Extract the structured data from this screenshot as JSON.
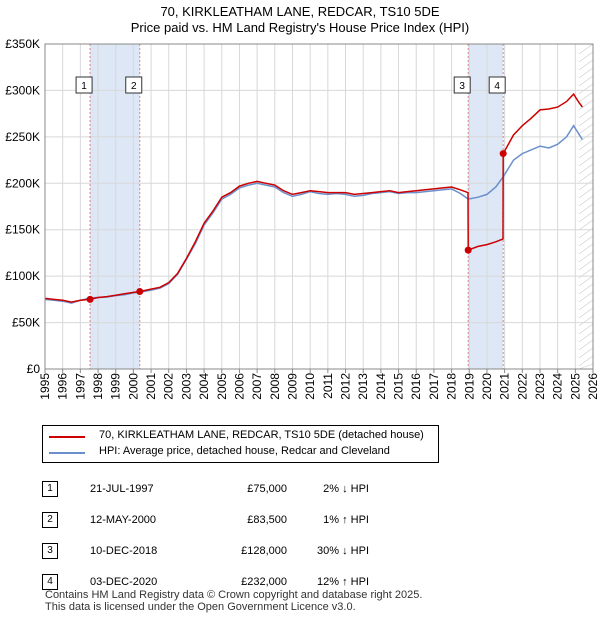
{
  "title": "70, KIRKLEATHAM LANE, REDCAR, TS10 5DE",
  "subtitle": "Price paid vs. HM Land Registry's House Price Index (HPI)",
  "legend": [
    {
      "label": "70, KIRKLEATHAM LANE, REDCAR, TS10 5DE (detached house)",
      "color": "#cc0000"
    },
    {
      "label": "HPI: Average price, detached house, Redcar and Cleveland",
      "color": "#6a8fcc"
    }
  ],
  "transactions": [
    {
      "num": "1",
      "date": "21-JUL-1997",
      "price": "£75,000",
      "hpi": "2% ↓ HPI"
    },
    {
      "num": "2",
      "date": "12-MAY-2000",
      "price": "£83,500",
      "hpi": "1% ↑ HPI"
    },
    {
      "num": "3",
      "date": "10-DEC-2018",
      "price": "£128,000",
      "hpi": "30% ↓ HPI"
    },
    {
      "num": "4",
      "date": "03-DEC-2020",
      "price": "£232,000",
      "hpi": "12% ↑ HPI"
    }
  ],
  "footer": {
    "line1": "Contains HM Land Registry data © Crown copyright and database right 2025.",
    "line2": "This data is licensed under the Open Government Licence v3.0."
  },
  "chart_data": {
    "type": "line",
    "title": "70, KIRKLEATHAM LANE, REDCAR, TS10 5DE",
    "xlim": [
      1995,
      2026
    ],
    "ylim": [
      0,
      350000
    ],
    "y_ticks": [
      0,
      50000,
      100000,
      150000,
      200000,
      250000,
      300000,
      350000
    ],
    "y_tick_labels": [
      "£0",
      "£50K",
      "£100K",
      "£150K",
      "£200K",
      "£250K",
      "£300K",
      "£350K"
    ],
    "x_ticks": [
      1995,
      1996,
      1997,
      1998,
      1999,
      2000,
      2001,
      2002,
      2003,
      2004,
      2005,
      2006,
      2007,
      2008,
      2009,
      2010,
      2011,
      2012,
      2013,
      2014,
      2015,
      2016,
      2017,
      2018,
      2019,
      2020,
      2021,
      2022,
      2023,
      2024,
      2025,
      2026
    ],
    "x_tick_labels": [
      "1995",
      "1996",
      "1997",
      "1998",
      "1999",
      "2000",
      "2001",
      "2002",
      "2003",
      "2004",
      "2005",
      "2006",
      "2007",
      "2008",
      "2009",
      "2010",
      "2011",
      "2012",
      "2013",
      "2014",
      "2015",
      "2016",
      "2017",
      "2018",
      "2019",
      "2020",
      "2021",
      "2022",
      "2023",
      "2024",
      "2025",
      "2026"
    ],
    "grid": true,
    "shaded_periods": [
      [
        1997.55,
        2000.36
      ],
      [
        2018.94,
        2020.92
      ]
    ],
    "forecast_start": 2025.2,
    "series": [
      {
        "name": "HPI: Average price, detached house, Redcar and Cleveland",
        "color": "#6a8fcc",
        "x": [
          1995,
          1995.5,
          1996,
          1996.5,
          1997,
          1997.55,
          1998,
          1998.5,
          1999,
          1999.5,
          2000,
          2000.36,
          2001,
          2001.5,
          2002,
          2002.5,
          2003,
          2003.5,
          2004,
          2004.5,
          2005,
          2005.5,
          2006,
          2006.5,
          2007,
          2007.5,
          2008,
          2008.5,
          2009,
          2009.5,
          2010,
          2010.5,
          2011,
          2011.5,
          2012,
          2012.5,
          2013,
          2013.5,
          2014,
          2014.5,
          2015,
          2015.5,
          2016,
          2016.5,
          2017,
          2017.5,
          2018,
          2018.5,
          2018.94,
          2019.5,
          2020,
          2020.5,
          2020.92,
          2021.5,
          2022,
          2022.5,
          2023,
          2023.5,
          2024,
          2024.5,
          2024.9,
          2025.2,
          2025.4
        ],
        "values": [
          75000,
          74000,
          73000,
          71000,
          74000,
          76500,
          77000,
          77500,
          79000,
          80000,
          82000,
          82700,
          85000,
          87000,
          92000,
          102000,
          118000,
          135000,
          155000,
          168000,
          183000,
          188000,
          195000,
          198000,
          200000,
          198000,
          196000,
          190000,
          186000,
          188000,
          191000,
          189000,
          188000,
          189000,
          188000,
          186000,
          187000,
          189000,
          190000,
          191000,
          189000,
          190000,
          190000,
          191000,
          192000,
          193000,
          194000,
          189000,
          183000,
          185000,
          188000,
          196000,
          207000,
          225000,
          232000,
          236000,
          240000,
          238000,
          242000,
          250000,
          262000,
          253000,
          247000
        ]
      },
      {
        "name": "70, KIRKLEATHAM LANE, REDCAR, TS10 5DE (detached house)",
        "color": "#cc0000",
        "x": [
          1995,
          1995.5,
          1996,
          1996.5,
          1997,
          1997.55,
          1998,
          1998.5,
          1999,
          1999.5,
          2000,
          2000.36,
          2001,
          2001.5,
          2002,
          2002.5,
          2003,
          2003.5,
          2004,
          2004.5,
          2005,
          2005.5,
          2006,
          2006.5,
          2007,
          2007.5,
          2008,
          2008.5,
          2009,
          2009.5,
          2010,
          2010.5,
          2011,
          2011.5,
          2012,
          2012.5,
          2013,
          2013.5,
          2014,
          2014.5,
          2015,
          2015.5,
          2016,
          2016.5,
          2017,
          2017.5,
          2018,
          2018.5,
          2018.93,
          2018.94,
          2019.5,
          2020,
          2020.5,
          2020.91,
          2020.92,
          2021.5,
          2022,
          2022.5,
          2023,
          2023.5,
          2024,
          2024.5,
          2024.9,
          2025.2,
          2025.4
        ],
        "values": [
          76000,
          75000,
          74000,
          72000,
          74000,
          75000,
          77000,
          78000,
          79500,
          81000,
          82500,
          83500,
          86000,
          88000,
          93000,
          103000,
          119000,
          137000,
          157000,
          170000,
          185000,
          190000,
          197000,
          200000,
          202000,
          200000,
          198000,
          192000,
          188000,
          190000,
          192000,
          191000,
          190000,
          190000,
          190000,
          188000,
          189000,
          190000,
          191000,
          192000,
          190000,
          191000,
          192000,
          193000,
          194000,
          195000,
          196000,
          193000,
          190000,
          128000,
          132000,
          134000,
          137000,
          140000,
          232000,
          252000,
          262000,
          270000,
          279000,
          280000,
          282000,
          288000,
          296000,
          287000,
          282000
        ]
      }
    ],
    "markers": [
      {
        "label": "1",
        "x": 1997.55,
        "y": 75000
      },
      {
        "label": "2",
        "x": 2000.36,
        "y": 83500
      },
      {
        "label": "3",
        "x": 2018.94,
        "y": 128000
      },
      {
        "label": "4",
        "x": 2020.92,
        "y": 232000
      }
    ]
  }
}
